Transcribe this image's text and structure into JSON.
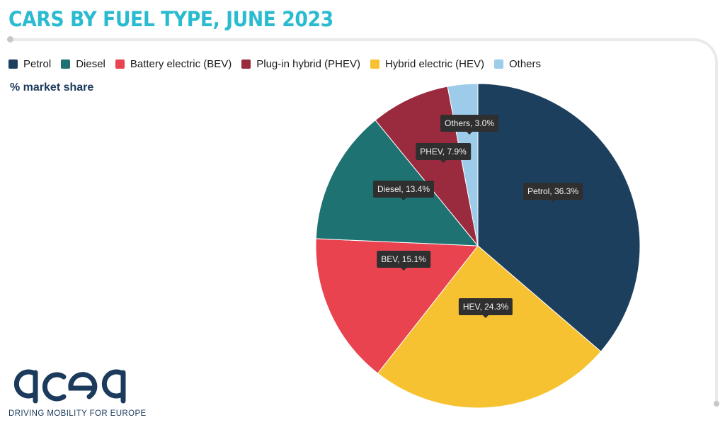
{
  "title": "CARS BY FUEL TYPE, JUNE 2023",
  "subtitle": "% market share",
  "legend": [
    {
      "label": "Petrol",
      "color": "#1d3f5e"
    },
    {
      "label": "Diesel",
      "color": "#1e7272"
    },
    {
      "label": "Battery electric (BEV)",
      "color": "#e8434f"
    },
    {
      "label": "Plug-in hybrid (PHEV)",
      "color": "#9a2a3e"
    },
    {
      "label": "Hybrid electric (HEV)",
      "color": "#f6c232"
    },
    {
      "label": "Others",
      "color": "#9dcbea"
    }
  ],
  "chart_data": {
    "type": "pie",
    "title": "CARS BY FUEL TYPE, JUNE 2023",
    "subtitle": "% market share",
    "legend_position": "top-left",
    "slices": [
      {
        "name": "Petrol",
        "value": 36.3,
        "color": "#1d3f5e",
        "label": "Petrol, 36.3%"
      },
      {
        "name": "HEV",
        "value": 24.3,
        "color": "#f6c232",
        "label": "HEV, 24.3%"
      },
      {
        "name": "BEV",
        "value": 15.1,
        "color": "#e8434f",
        "label": "BEV, 15.1%"
      },
      {
        "name": "Diesel",
        "value": 13.4,
        "color": "#1e7272",
        "label": "Diesel, 13.4%"
      },
      {
        "name": "PHEV",
        "value": 7.9,
        "color": "#9a2a3e",
        "label": "PHEV, 7.9%"
      },
      {
        "name": "Others",
        "value": 3.0,
        "color": "#9dcbea",
        "label": "Others, 3.0%"
      }
    ]
  },
  "logo": {
    "wordmark": "acea",
    "tagline": "DRIVING MOBILITY FOR EUROPE",
    "color": "#1b3a5c"
  }
}
